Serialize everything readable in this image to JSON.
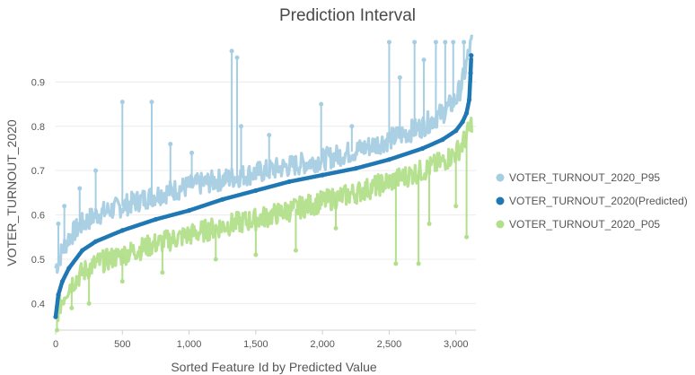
{
  "chart_data": {
    "type": "line",
    "title": "Prediction Interval",
    "xlabel": "Sorted Feature Id by Predicted Value",
    "ylabel": "VOTER_TURNOUT_2020",
    "xlim": [
      0,
      3150
    ],
    "ylim": [
      0.34,
      1.0
    ],
    "x_ticks": [
      0,
      500,
      1000,
      1500,
      2000,
      2500,
      3000
    ],
    "x_tick_labels": [
      "0",
      "500",
      "1,000",
      "1,500",
      "2,000",
      "2,500",
      "3,000"
    ],
    "y_ticks": [
      0.4,
      0.5,
      0.6,
      0.7,
      0.8,
      0.9
    ],
    "y_tick_labels": [
      "0.4",
      "0.5",
      "0.6",
      "0.7",
      "0.8",
      "0.9"
    ],
    "grid": "horizontal",
    "legend_position": "right",
    "series": [
      {
        "name": "VOTER_TURNOUT_2020_P95",
        "color": "#a6cee3",
        "x": [
          0,
          50,
          100,
          200,
          300,
          500,
          750,
          1000,
          1250,
          1500,
          1750,
          2000,
          2250,
          2500,
          2750,
          2900,
          3000,
          3050,
          3100,
          3120
        ],
        "values": [
          0.48,
          0.52,
          0.55,
          0.58,
          0.6,
          0.62,
          0.645,
          0.665,
          0.68,
          0.695,
          0.71,
          0.725,
          0.745,
          0.77,
          0.8,
          0.83,
          0.86,
          0.9,
          0.97,
          0.99
        ],
        "spikes": [
          {
            "x": 20,
            "y": 0.58
          },
          {
            "x": 65,
            "y": 0.62
          },
          {
            "x": 180,
            "y": 0.66
          },
          {
            "x": 300,
            "y": 0.7
          },
          {
            "x": 500,
            "y": 0.855
          },
          {
            "x": 720,
            "y": 0.855
          },
          {
            "x": 860,
            "y": 0.76
          },
          {
            "x": 1020,
            "y": 0.74
          },
          {
            "x": 1320,
            "y": 0.97
          },
          {
            "x": 1360,
            "y": 0.955
          },
          {
            "x": 1390,
            "y": 0.8
          },
          {
            "x": 1600,
            "y": 0.78
          },
          {
            "x": 1990,
            "y": 0.85
          },
          {
            "x": 2220,
            "y": 0.8
          },
          {
            "x": 2500,
            "y": 0.99
          },
          {
            "x": 2580,
            "y": 0.91
          },
          {
            "x": 2690,
            "y": 0.99
          },
          {
            "x": 2760,
            "y": 0.95
          },
          {
            "x": 2850,
            "y": 0.99
          },
          {
            "x": 2920,
            "y": 0.99
          },
          {
            "x": 2980,
            "y": 0.99
          },
          {
            "x": 3060,
            "y": 0.99
          }
        ]
      },
      {
        "name": "VOTER_TURNOUT_2020(Predicted)",
        "color": "#1f78b4",
        "x": [
          0,
          20,
          50,
          100,
          200,
          300,
          500,
          750,
          1000,
          1250,
          1500,
          1750,
          2000,
          2250,
          2500,
          2750,
          2900,
          3000,
          3050,
          3080,
          3100,
          3110,
          3115
        ],
        "values": [
          0.37,
          0.42,
          0.45,
          0.48,
          0.52,
          0.54,
          0.565,
          0.59,
          0.61,
          0.635,
          0.655,
          0.675,
          0.69,
          0.705,
          0.725,
          0.75,
          0.77,
          0.79,
          0.81,
          0.83,
          0.86,
          0.92,
          0.96
        ]
      },
      {
        "name": "VOTER_TURNOUT_2020_P05",
        "color": "#b2df8a",
        "x": [
          0,
          50,
          100,
          200,
          300,
          500,
          750,
          1000,
          1250,
          1500,
          1750,
          2000,
          2250,
          2500,
          2750,
          2900,
          3000,
          3050,
          3100,
          3120
        ],
        "values": [
          0.37,
          0.41,
          0.44,
          0.47,
          0.49,
          0.51,
          0.535,
          0.555,
          0.575,
          0.59,
          0.61,
          0.63,
          0.65,
          0.675,
          0.7,
          0.72,
          0.74,
          0.76,
          0.79,
          0.81
        ],
        "spikes": [
          {
            "x": 10,
            "y": 0.34
          },
          {
            "x": 120,
            "y": 0.39
          },
          {
            "x": 250,
            "y": 0.4
          },
          {
            "x": 500,
            "y": 0.45
          },
          {
            "x": 800,
            "y": 0.47
          },
          {
            "x": 1200,
            "y": 0.5
          },
          {
            "x": 1500,
            "y": 0.51
          },
          {
            "x": 1800,
            "y": 0.52
          },
          {
            "x": 2100,
            "y": 0.57
          },
          {
            "x": 2550,
            "y": 0.49
          },
          {
            "x": 2720,
            "y": 0.49
          },
          {
            "x": 2800,
            "y": 0.58
          },
          {
            "x": 3000,
            "y": 0.62
          },
          {
            "x": 3080,
            "y": 0.55
          }
        ]
      }
    ]
  }
}
